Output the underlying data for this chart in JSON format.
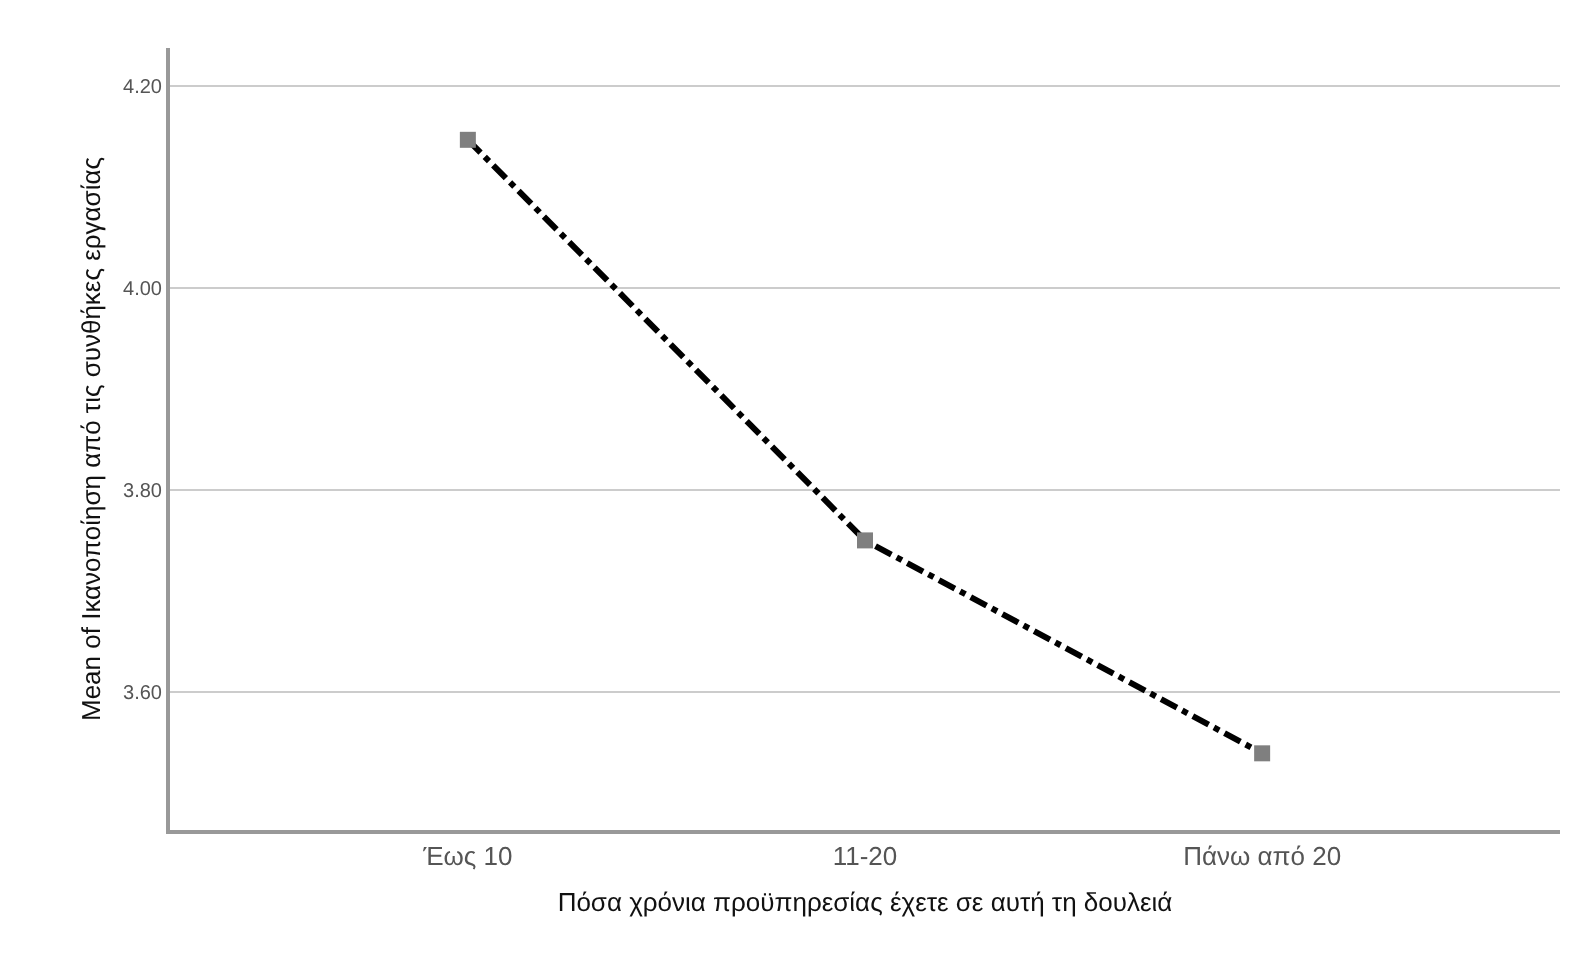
{
  "chart_data": {
    "type": "line",
    "xlabel": "Πόσα χρόνια προϋπηρεσίας έχετε σε αυτή τη δουλειά",
    "ylabel": "Mean of Ικανοποίηση από τις συνθήκες εργασίας",
    "categories": [
      "Έως 10",
      "11-20",
      "Πάνω από 20"
    ],
    "series": [
      {
        "color": "#000000",
        "colors": [
          "#7f7f7f",
          "#7f7f7f",
          "#7f7f7f"
        ],
        "values": [
          4.147,
          3.75,
          3.539
        ]
      }
    ],
    "ylim": [
      3.463,
      4.238
    ],
    "yticks": [
      {
        "value": 3.6,
        "label": "3.60"
      },
      {
        "value": 3.8,
        "label": "3.80"
      },
      {
        "value": 4.0,
        "label": "4.00"
      },
      {
        "value": 4.2,
        "label": "4.20"
      }
    ],
    "grid": "y",
    "marker": "square",
    "line_style": "dashed"
  }
}
